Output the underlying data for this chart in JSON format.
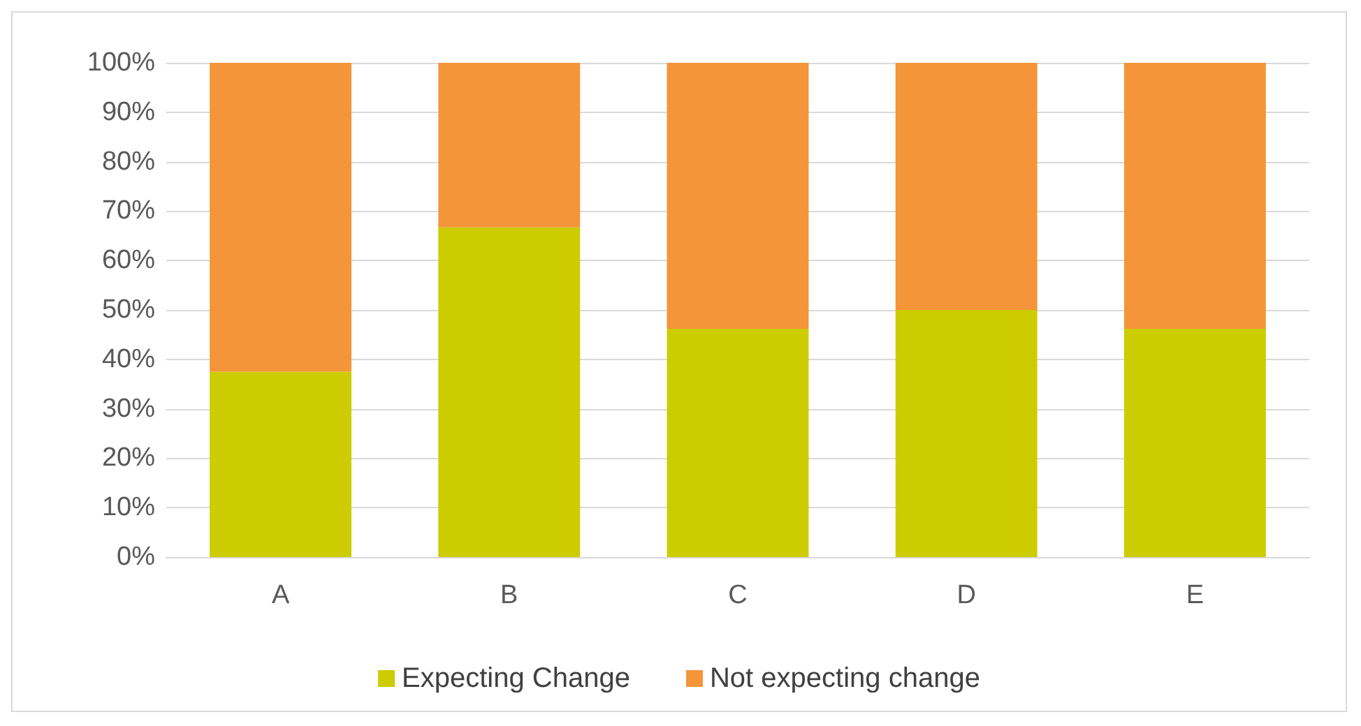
{
  "chart_data": {
    "type": "bar",
    "stacked": true,
    "categories": [
      "A",
      "B",
      "C",
      "D",
      "E"
    ],
    "series": [
      {
        "name": "Expecting Change",
        "color": "#cccc00",
        "values": [
          37.5,
          66.7,
          46.2,
          50,
          46.2
        ]
      },
      {
        "name": "Not expecting change",
        "color": "#f39538",
        "values": [
          62.5,
          33.3,
          53.8,
          50,
          53.8
        ]
      }
    ],
    "ylim": [
      0,
      100
    ],
    "yticks": [
      {
        "value": 0,
        "label": "0%"
      },
      {
        "value": 10,
        "label": "10%"
      },
      {
        "value": 20,
        "label": "20%"
      },
      {
        "value": 30,
        "label": "30%"
      },
      {
        "value": 40,
        "label": "40%"
      },
      {
        "value": 50,
        "label": "50%"
      },
      {
        "value": 60,
        "label": "60%"
      },
      {
        "value": 70,
        "label": "70%"
      },
      {
        "value": 80,
        "label": "80%"
      },
      {
        "value": 90,
        "label": "90%"
      },
      {
        "value": 100,
        "label": "100%"
      }
    ],
    "grid": "y",
    "legend": "bottom"
  }
}
